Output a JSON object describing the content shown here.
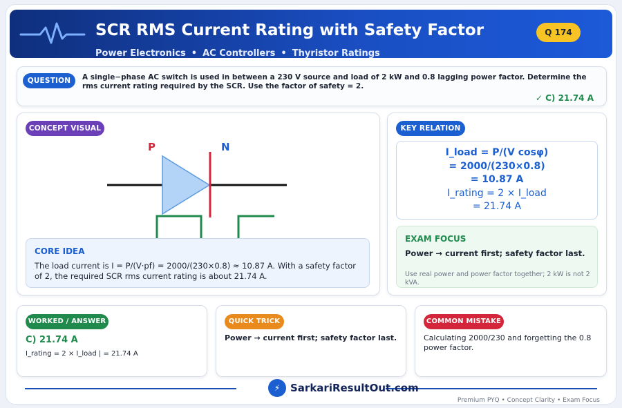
{
  "header": {
    "title": "SCR RMS Current Rating with Safety Factor",
    "subtitle_items": [
      "Power Electronics",
      "AC Controllers",
      "Thyristor Ratings"
    ],
    "separator": "•",
    "question_badge": "Q 174",
    "icon": "pulse-wave-icon"
  },
  "question": {
    "label": "QUESTION",
    "text": "A single−phase AC switch is used in between a 230 V source and load of 2 kW and 0.8 lagging power factor. Determine the rms current rating required by the SCR. Use the factor of safety = 2.",
    "answer": "✓ C) 21.74 A"
  },
  "concept": {
    "label": "CONCEPT VISUAL",
    "diagram": {
      "p_label": "P",
      "n_label": "N"
    },
    "core_title": "CORE IDEA",
    "core_text": "The load current is I = P/(V·pf) = 2000/(230×0.8) ≈ 10.87 A. With a safety factor of 2, the required SCR rms current rating is about 21.74 A."
  },
  "key_relation": {
    "label": "KEY RELATION",
    "lines": [
      "I_load = P/(V cosφ)",
      "= 2000/(230×0.8)",
      "= 10.87 A",
      "I_rating = 2 × I_load",
      "= 21.74 A"
    ],
    "exam_title": "EXAM FOCUS",
    "exam_main": "Power → current first; safety factor last.",
    "exam_note": "Use real power and power factor together; 2 kW is not 2 kVA."
  },
  "worked": {
    "label": "WORKED / ANSWER",
    "answer": "C) 21.74 A",
    "text": "I_rating = 2 × I_load | = 21.74 A"
  },
  "trick": {
    "label": "QUICK TRICK",
    "text": "Power → current first; safety factor last."
  },
  "mistake": {
    "label": "COMMON MISTAKE",
    "text": "Calculating 2000/230 and forgetting the 0.8 power factor."
  },
  "footer": {
    "brand": "SarkariResultOut.com",
    "logo_glyph": "⚡",
    "tagline": "Premium PYQ • Concept Clarity • Exam Focus"
  },
  "colors": {
    "header_dark": "#0f2f7d",
    "header_light": "#1c5ad8",
    "badge_yellow": "#f7c325",
    "blue": "#1b5fd1",
    "purple": "#6a3fb8",
    "green": "#1f8a4c",
    "orange": "#e98a1c",
    "red": "#d3263a"
  }
}
